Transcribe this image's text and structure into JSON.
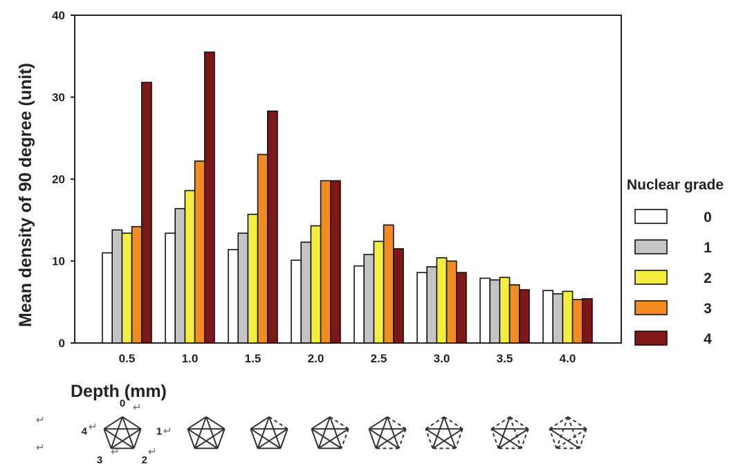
{
  "chart_data": {
    "type": "bar",
    "ylabel": "Mean density of 90 degree (unit)",
    "xlabel": "Depth (mm)",
    "ylim": [
      0,
      40
    ],
    "yticks": [
      0,
      10,
      20,
      30,
      40
    ],
    "grid": false,
    "categories": [
      "0.5",
      "1.0",
      "1.5",
      "2.0",
      "2.5",
      "3.0",
      "3.5",
      "4.0"
    ],
    "legend": {
      "title": "Nuclear grade",
      "placement": "right"
    },
    "series": [
      {
        "name": "0",
        "color": "#ffffff",
        "values": [
          11.0,
          13.4,
          11.4,
          10.1,
          9.4,
          8.6,
          7.9,
          6.4
        ]
      },
      {
        "name": "1",
        "color": "#c4c4c4",
        "values": [
          13.8,
          16.4,
          13.4,
          12.3,
          10.8,
          9.3,
          7.7,
          6.0
        ]
      },
      {
        "name": "2",
        "color": "#f3ee3e",
        "values": [
          13.4,
          18.6,
          15.7,
          14.3,
          12.4,
          10.4,
          8.0,
          6.3
        ]
      },
      {
        "name": "3",
        "color": "#f28b22",
        "values": [
          14.2,
          22.2,
          23.0,
          19.8,
          14.4,
          10.0,
          7.1,
          5.3
        ]
      },
      {
        "name": "4",
        "color": "#7e1717",
        "values": [
          31.8,
          35.5,
          28.3,
          19.8,
          11.5,
          8.6,
          6.5,
          5.4
        ]
      }
    ]
  },
  "diagram": {
    "vertex_labels": [
      "0",
      "1",
      "2",
      "3",
      "4"
    ],
    "return_glyph": "↵"
  }
}
